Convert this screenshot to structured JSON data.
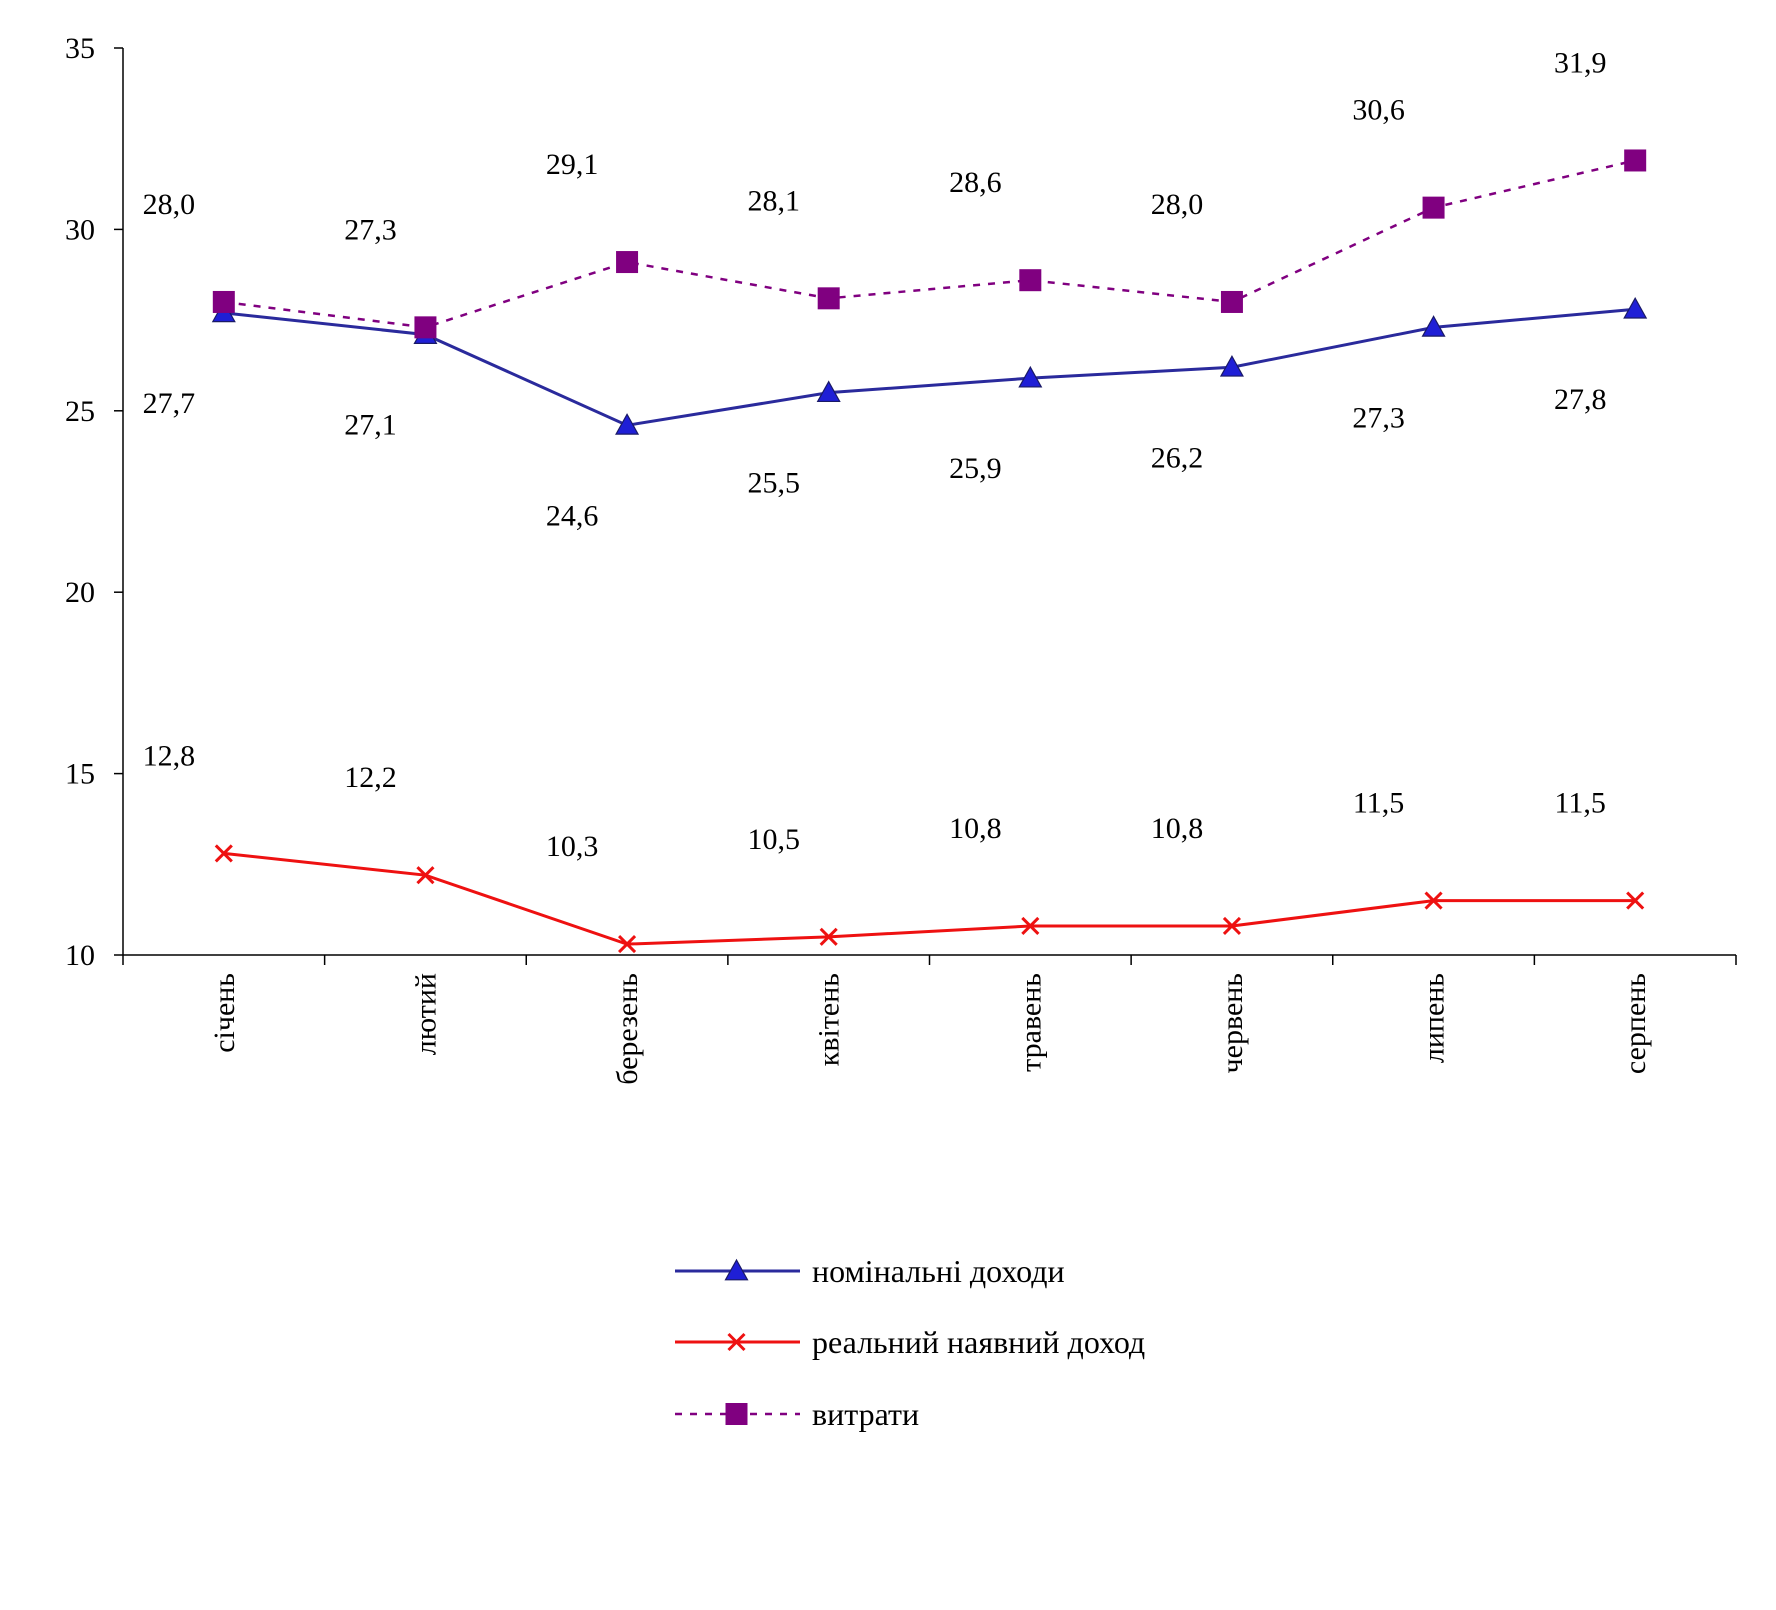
{
  "chart_data": {
    "type": "line",
    "title": "",
    "xlabel": "",
    "ylabel": "",
    "ylim": [
      10,
      35
    ],
    "yticks": [
      10,
      15,
      20,
      25,
      30,
      35
    ],
    "grid": false,
    "legend_position": "bottom-center",
    "categories": [
      "січень",
      "лютий",
      "березень",
      "квітень",
      "травень",
      "червень",
      "липень",
      "серпень"
    ],
    "series": [
      {
        "name": "номінальні доходи",
        "values": [
          27.7,
          27.1,
          24.6,
          25.5,
          25.9,
          26.2,
          27.3,
          27.8
        ],
        "labels": [
          "27,7",
          "27,1",
          "24,6",
          "25,5",
          "25,9",
          "26,2",
          "27,3",
          "27,8"
        ],
        "color": "#2a2a9c",
        "marker": "triangle",
        "dash": "solid",
        "label_position": "below"
      },
      {
        "name": "реальний наявний доход",
        "values": [
          12.8,
          12.2,
          10.3,
          10.5,
          10.8,
          10.8,
          11.5,
          11.5
        ],
        "labels": [
          "12,8",
          "12,2",
          "10,3",
          "10,5",
          "10,8",
          "10,8",
          "11,5",
          "11,5"
        ],
        "color": "#ee1111",
        "marker": "x",
        "dash": "solid",
        "label_position": "above"
      },
      {
        "name": "витрати",
        "values": [
          28.0,
          27.3,
          29.1,
          28.1,
          28.6,
          28.0,
          30.6,
          31.9
        ],
        "labels": [
          "28,0",
          "27,3",
          "29,1",
          "28,1",
          "28,6",
          "28,0",
          "30,6",
          "31,9"
        ],
        "color": "#800080",
        "marker": "square",
        "dash": "dashed",
        "label_position": "above"
      }
    ]
  }
}
